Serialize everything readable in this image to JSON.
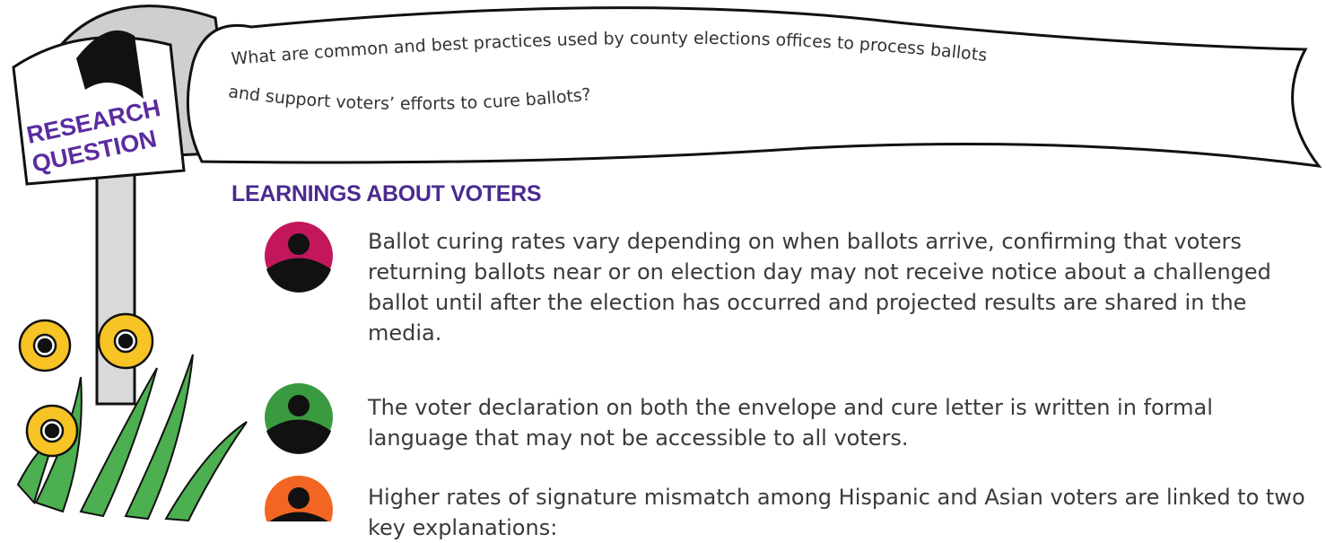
{
  "sign": {
    "line1": "RESEARCH",
    "line2": "QUESTION"
  },
  "question": {
    "line1": "What are common and best practices used by county elections offices to process ballots",
    "line2": "and support voters’ efforts to cure ballots?"
  },
  "section": {
    "heading": "LEARNINGS ABOUT VOTERS",
    "items": [
      {
        "text": "Ballot curing rates vary depending on when ballots arrive, confirming that voters returning ballots near or on election day may not receive notice about a challenged ballot until after the election has occurred and projected results are shared in the media."
      },
      {
        "text": "The voter declaration on both the envelope and cure letter is written in formal language that may not be accessible to all voters."
      },
      {
        "text": "Higher rates of signature mismatch among Hispanic and Asian voters are linked to two key explanations:"
      }
    ]
  }
}
